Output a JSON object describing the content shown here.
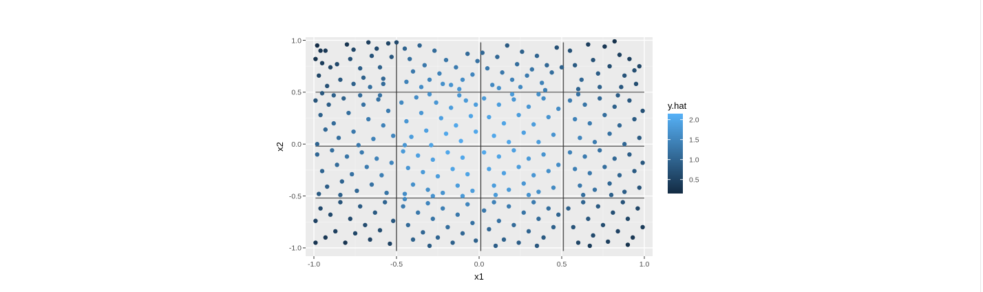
{
  "chart_data": {
    "type": "scatter",
    "title": "",
    "xlabel": "x1",
    "ylabel": "x2",
    "xlim": [
      -1.05,
      1.05
    ],
    "ylim": [
      -1.08,
      1.03
    ],
    "xticks": [
      -1.0,
      -0.5,
      0.0,
      0.5,
      1.0
    ],
    "xtick_labels": [
      "-1.0",
      "-0.5",
      "0.0",
      "0.5",
      "1.0"
    ],
    "yticks": [
      -1.0,
      -0.5,
      0.0,
      0.5,
      1.0
    ],
    "ytick_labels": [
      "-1.0",
      "-0.5",
      "0.0",
      "0.5",
      "1.0"
    ],
    "grid": true,
    "background": "#ebebeb",
    "color_scale": {
      "name": "y.hat",
      "low_color": "#132b43",
      "high_color": "#56b1f7",
      "range": [
        0.15,
        2.15
      ],
      "breaks": [
        0.5,
        1.0,
        1.5,
        2.0
      ],
      "break_labels": [
        "0.5",
        "1.0",
        "1.5",
        "2.0"
      ],
      "legend_position": "right"
    },
    "vertical_lines": [
      {
        "x": -0.5,
        "y_from": -1.03,
        "y_to": 0.98
      },
      {
        "x": 0.01,
        "y_from": -1.03,
        "y_to": 0.98
      },
      {
        "x": 0.51,
        "y_from": -1.03,
        "y_to": 0.98
      }
    ],
    "horizontal_lines": [
      {
        "y": 0.5,
        "x_from": -0.99,
        "x_to": 1.0
      },
      {
        "y": -0.02,
        "x_from": -0.99,
        "x_to": 1.0
      },
      {
        "y": -0.52,
        "x_from": -0.99,
        "x_to": 1.0
      }
    ],
    "points": [
      [
        -0.98,
        0.95,
        0.2
      ],
      [
        -0.96,
        0.9,
        0.3
      ],
      [
        -0.93,
        0.9,
        0.35
      ],
      [
        -0.99,
        0.82,
        0.25
      ],
      [
        -0.95,
        0.78,
        0.4
      ],
      [
        -0.9,
        0.74,
        0.55
      ],
      [
        -0.86,
        0.77,
        0.6
      ],
      [
        -0.8,
        0.96,
        0.3
      ],
      [
        -0.78,
        0.82,
        0.7
      ],
      [
        -0.76,
        0.91,
        0.55
      ],
      [
        -0.72,
        0.73,
        0.9
      ],
      [
        -0.7,
        0.64,
        0.95
      ],
      [
        -0.67,
        0.98,
        0.45
      ],
      [
        -0.65,
        0.85,
        0.75
      ],
      [
        -0.62,
        0.92,
        0.6
      ],
      [
        -0.6,
        0.74,
        0.95
      ],
      [
        -0.58,
        0.63,
        1.05
      ],
      [
        -0.55,
        0.97,
        0.55
      ],
      [
        -0.53,
        0.84,
        0.8
      ],
      [
        -0.5,
        0.98,
        0.6
      ],
      [
        -0.97,
        0.66,
        0.55
      ],
      [
        -0.92,
        0.56,
        0.7
      ],
      [
        -0.84,
        0.62,
        0.8
      ],
      [
        -0.76,
        0.58,
        0.95
      ],
      [
        -0.66,
        0.55,
        1.15
      ],
      [
        -0.58,
        0.58,
        1.1
      ],
      [
        -0.45,
        0.92,
        1.0
      ],
      [
        -0.42,
        0.82,
        1.15
      ],
      [
        -0.4,
        0.7,
        1.3
      ],
      [
        -0.36,
        0.95,
        1.0
      ],
      [
        -0.33,
        0.76,
        1.3
      ],
      [
        -0.3,
        0.62,
        1.5
      ],
      [
        -0.27,
        0.9,
        1.1
      ],
      [
        -0.24,
        0.68,
        1.45
      ],
      [
        -0.2,
        0.81,
        1.25
      ],
      [
        -0.17,
        0.57,
        1.7
      ],
      [
        -0.14,
        0.74,
        1.35
      ],
      [
        -0.1,
        0.62,
        1.6
      ],
      [
        -0.07,
        0.87,
        1.1
      ],
      [
        -0.04,
        0.67,
        1.5
      ],
      [
        -0.01,
        0.8,
        1.2
      ],
      [
        -0.44,
        0.6,
        1.45
      ],
      [
        -0.35,
        0.55,
        1.6
      ],
      [
        -0.22,
        0.58,
        1.65
      ],
      [
        -0.12,
        0.53,
        1.75
      ],
      [
        0.02,
        0.88,
        1.05
      ],
      [
        0.05,
        0.73,
        1.3
      ],
      [
        0.08,
        0.57,
        1.55
      ],
      [
        0.11,
        0.84,
        1.05
      ],
      [
        0.14,
        0.69,
        1.3
      ],
      [
        0.17,
        0.95,
        0.85
      ],
      [
        0.2,
        0.62,
        1.45
      ],
      [
        0.23,
        0.77,
        1.15
      ],
      [
        0.26,
        0.89,
        0.95
      ],
      [
        0.29,
        0.66,
        1.35
      ],
      [
        0.32,
        0.72,
        1.25
      ],
      [
        0.35,
        0.85,
        1.0
      ],
      [
        0.38,
        0.59,
        1.45
      ],
      [
        0.41,
        0.76,
        1.05
      ],
      [
        0.44,
        0.69,
        1.15
      ],
      [
        0.47,
        0.93,
        0.7
      ],
      [
        0.5,
        0.74,
        0.95
      ],
      [
        0.12,
        0.54,
        1.65
      ],
      [
        0.25,
        0.55,
        1.55
      ],
      [
        0.4,
        0.52,
        1.4
      ],
      [
        0.55,
        0.9,
        0.7
      ],
      [
        0.58,
        0.76,
        0.85
      ],
      [
        0.62,
        0.62,
        1.05
      ],
      [
        0.66,
        0.96,
        0.45
      ],
      [
        0.69,
        0.81,
        0.7
      ],
      [
        0.72,
        0.68,
        0.9
      ],
      [
        0.76,
        0.94,
        0.35
      ],
      [
        0.79,
        0.75,
        0.65
      ],
      [
        0.82,
        0.99,
        0.25
      ],
      [
        0.85,
        0.86,
        0.45
      ],
      [
        0.88,
        0.66,
        0.75
      ],
      [
        0.91,
        0.82,
        0.45
      ],
      [
        0.94,
        0.71,
        0.65
      ],
      [
        0.97,
        0.75,
        0.55
      ],
      [
        0.6,
        0.53,
        1.0
      ],
      [
        0.73,
        0.55,
        0.95
      ],
      [
        0.86,
        0.55,
        0.8
      ],
      [
        0.95,
        0.58,
        0.65
      ],
      [
        -0.99,
        0.42,
        0.75
      ],
      [
        -0.96,
        0.28,
        0.95
      ],
      [
        -0.93,
        0.14,
        1.05
      ],
      [
        -0.98,
        0.0,
        1.0
      ],
      [
        -0.91,
        0.38,
        0.9
      ],
      [
        -0.88,
        0.2,
        1.1
      ],
      [
        -0.85,
        0.06,
        1.15
      ],
      [
        -0.82,
        0.44,
        0.95
      ],
      [
        -0.79,
        0.3,
        1.15
      ],
      [
        -0.76,
        0.12,
        1.3
      ],
      [
        -0.73,
        -0.01,
        1.3
      ],
      [
        -0.7,
        0.38,
        1.2
      ],
      [
        -0.67,
        0.24,
        1.35
      ],
      [
        -0.64,
        0.05,
        1.45
      ],
      [
        -0.61,
        0.43,
        1.2
      ],
      [
        -0.58,
        0.18,
        1.45
      ],
      [
        -0.55,
        0.32,
        1.35
      ],
      [
        -0.52,
        0.08,
        1.5
      ],
      [
        -0.95,
        0.49,
        0.8
      ],
      [
        -0.88,
        0.47,
        0.95
      ],
      [
        -0.72,
        0.47,
        1.1
      ],
      [
        -0.6,
        0.47,
        1.2
      ],
      [
        -0.47,
        0.4,
        1.55
      ],
      [
        -0.44,
        0.22,
        1.75
      ],
      [
        -0.41,
        0.07,
        1.85
      ],
      [
        -0.38,
        0.45,
        1.6
      ],
      [
        -0.35,
        0.3,
        1.75
      ],
      [
        -0.32,
        0.13,
        1.9
      ],
      [
        -0.29,
        -0.01,
        1.95
      ],
      [
        -0.26,
        0.4,
        1.75
      ],
      [
        -0.23,
        0.25,
        1.9
      ],
      [
        -0.2,
        0.1,
        2.0
      ],
      [
        -0.17,
        0.35,
        1.85
      ],
      [
        -0.14,
        0.18,
        2.0
      ],
      [
        -0.11,
        0.03,
        2.05
      ],
      [
        -0.08,
        0.42,
        1.8
      ],
      [
        -0.05,
        0.27,
        1.95
      ],
      [
        -0.02,
        0.12,
        2.0
      ],
      [
        -0.45,
        -0.01,
        1.75
      ],
      [
        -0.3,
        0.48,
        1.7
      ],
      [
        -0.12,
        0.47,
        1.75
      ],
      [
        -0.02,
        0.38,
        1.85
      ],
      [
        0.03,
        0.44,
        1.8
      ],
      [
        0.06,
        0.26,
        1.95
      ],
      [
        0.09,
        0.08,
        2.0
      ],
      [
        0.12,
        0.38,
        1.85
      ],
      [
        0.15,
        0.2,
        1.95
      ],
      [
        0.18,
        0.02,
        2.0
      ],
      [
        0.21,
        0.43,
        1.75
      ],
      [
        0.24,
        0.28,
        1.85
      ],
      [
        0.27,
        0.11,
        1.9
      ],
      [
        0.3,
        0.36,
        1.75
      ],
      [
        0.33,
        0.19,
        1.85
      ],
      [
        0.36,
        0.02,
        1.85
      ],
      [
        0.39,
        0.44,
        1.6
      ],
      [
        0.42,
        0.26,
        1.7
      ],
      [
        0.45,
        0.09,
        1.7
      ],
      [
        0.48,
        0.34,
        1.6
      ],
      [
        0.2,
        0.48,
        1.8
      ],
      [
        0.36,
        0.48,
        1.65
      ],
      [
        0.55,
        0.42,
        1.35
      ],
      [
        0.58,
        0.24,
        1.45
      ],
      [
        0.61,
        0.06,
        1.5
      ],
      [
        0.64,
        0.38,
        1.25
      ],
      [
        0.67,
        0.2,
        1.35
      ],
      [
        0.7,
        0.02,
        1.35
      ],
      [
        0.73,
        0.44,
        1.05
      ],
      [
        0.76,
        0.28,
        1.15
      ],
      [
        0.79,
        0.1,
        1.2
      ],
      [
        0.82,
        0.36,
        0.95
      ],
      [
        0.85,
        0.18,
        1.05
      ],
      [
        0.88,
        0.0,
        1.05
      ],
      [
        0.91,
        0.42,
        0.8
      ],
      [
        0.94,
        0.24,
        0.85
      ],
      [
        0.97,
        0.06,
        0.85
      ],
      [
        0.99,
        0.32,
        0.7
      ],
      [
        0.6,
        0.48,
        1.2
      ],
      [
        0.84,
        0.47,
        0.9
      ],
      [
        -0.98,
        -0.1,
        1.05
      ],
      [
        -0.95,
        -0.26,
        1.0
      ],
      [
        -0.92,
        -0.41,
        0.9
      ],
      [
        -0.89,
        -0.06,
        1.15
      ],
      [
        -0.86,
        -0.2,
        1.1
      ],
      [
        -0.83,
        -0.36,
        1.0
      ],
      [
        -0.8,
        -0.12,
        1.25
      ],
      [
        -0.77,
        -0.29,
        1.2
      ],
      [
        -0.74,
        -0.45,
        1.05
      ],
      [
        -0.71,
        -0.08,
        1.35
      ],
      [
        -0.68,
        -0.22,
        1.35
      ],
      [
        -0.65,
        -0.39,
        1.2
      ],
      [
        -0.62,
        -0.14,
        1.45
      ],
      [
        -0.59,
        -0.3,
        1.4
      ],
      [
        -0.56,
        -0.47,
        1.25
      ],
      [
        -0.53,
        -0.18,
        1.5
      ],
      [
        -0.97,
        -0.48,
        0.85
      ],
      [
        -0.84,
        -0.49,
        0.95
      ],
      [
        -0.46,
        -0.07,
        1.8
      ],
      [
        -0.43,
        -0.23,
        1.75
      ],
      [
        -0.4,
        -0.39,
        1.65
      ],
      [
        -0.37,
        -0.11,
        1.9
      ],
      [
        -0.34,
        -0.27,
        1.8
      ],
      [
        -0.31,
        -0.44,
        1.65
      ],
      [
        -0.28,
        -0.15,
        1.9
      ],
      [
        -0.25,
        -0.31,
        1.85
      ],
      [
        -0.22,
        -0.47,
        1.7
      ],
      [
        -0.19,
        -0.08,
        2.0
      ],
      [
        -0.16,
        -0.24,
        1.95
      ],
      [
        -0.13,
        -0.4,
        1.85
      ],
      [
        -0.1,
        -0.13,
        2.0
      ],
      [
        -0.07,
        -0.29,
        1.95
      ],
      [
        -0.04,
        -0.45,
        1.85
      ],
      [
        -0.45,
        -0.48,
        1.6
      ],
      [
        -0.28,
        -0.5,
        1.7
      ],
      [
        -0.1,
        -0.5,
        1.8
      ],
      [
        0.03,
        -0.08,
        2.0
      ],
      [
        0.06,
        -0.24,
        1.95
      ],
      [
        0.09,
        -0.4,
        1.85
      ],
      [
        0.12,
        -0.12,
        1.95
      ],
      [
        0.15,
        -0.28,
        1.9
      ],
      [
        0.18,
        -0.44,
        1.8
      ],
      [
        0.21,
        -0.06,
        1.9
      ],
      [
        0.24,
        -0.22,
        1.85
      ],
      [
        0.27,
        -0.38,
        1.75
      ],
      [
        0.3,
        -0.14,
        1.8
      ],
      [
        0.33,
        -0.3,
        1.75
      ],
      [
        0.36,
        -0.46,
        1.65
      ],
      [
        0.39,
        -0.1,
        1.7
      ],
      [
        0.42,
        -0.26,
        1.65
      ],
      [
        0.45,
        -0.42,
        1.55
      ],
      [
        0.48,
        -0.2,
        1.6
      ],
      [
        0.1,
        -0.49,
        1.8
      ],
      [
        0.3,
        -0.49,
        1.7
      ],
      [
        0.55,
        -0.08,
        1.45
      ],
      [
        0.58,
        -0.24,
        1.4
      ],
      [
        0.61,
        -0.4,
        1.3
      ],
      [
        0.64,
        -0.12,
        1.35
      ],
      [
        0.67,
        -0.28,
        1.3
      ],
      [
        0.7,
        -0.44,
        1.2
      ],
      [
        0.73,
        -0.06,
        1.2
      ],
      [
        0.76,
        -0.22,
        1.15
      ],
      [
        0.79,
        -0.38,
        1.05
      ],
      [
        0.82,
        -0.14,
        1.05
      ],
      [
        0.85,
        -0.3,
        1.0
      ],
      [
        0.88,
        -0.46,
        0.9
      ],
      [
        0.91,
        -0.1,
        0.9
      ],
      [
        0.94,
        -0.26,
        0.85
      ],
      [
        0.97,
        -0.42,
        0.75
      ],
      [
        0.99,
        -0.18,
        0.8
      ],
      [
        0.63,
        -0.49,
        1.15
      ],
      [
        0.8,
        -0.49,
        0.95
      ],
      [
        -0.99,
        -0.74,
        0.5
      ],
      [
        -0.96,
        -0.62,
        0.6
      ],
      [
        -0.93,
        -0.9,
        0.35
      ],
      [
        -0.9,
        -0.68,
        0.6
      ],
      [
        -0.87,
        -0.84,
        0.45
      ],
      [
        -0.84,
        -0.56,
        0.75
      ],
      [
        -0.81,
        -0.95,
        0.3
      ],
      [
        -0.78,
        -0.72,
        0.6
      ],
      [
        -0.75,
        -0.86,
        0.55
      ],
      [
        -0.72,
        -0.6,
        0.85
      ],
      [
        -0.69,
        -0.78,
        0.65
      ],
      [
        -0.66,
        -0.92,
        0.5
      ],
      [
        -0.63,
        -0.66,
        0.85
      ],
      [
        -0.6,
        -0.83,
        0.65
      ],
      [
        -0.57,
        -0.56,
        1.0
      ],
      [
        -0.54,
        -0.96,
        0.5
      ],
      [
        -0.52,
        -0.74,
        0.8
      ],
      [
        -0.99,
        -0.95,
        0.3
      ],
      [
        -0.46,
        -0.6,
        1.35
      ],
      [
        -0.43,
        -0.78,
        1.1
      ],
      [
        -0.4,
        -0.92,
        0.95
      ],
      [
        -0.37,
        -0.66,
        1.3
      ],
      [
        -0.34,
        -0.85,
        1.05
      ],
      [
        -0.31,
        -0.57,
        1.5
      ],
      [
        -0.28,
        -0.72,
        1.25
      ],
      [
        -0.25,
        -0.9,
        1.0
      ],
      [
        -0.22,
        -0.62,
        1.4
      ],
      [
        -0.19,
        -0.8,
        1.15
      ],
      [
        -0.16,
        -0.95,
        0.95
      ],
      [
        -0.13,
        -0.68,
        1.3
      ],
      [
        -0.1,
        -0.86,
        1.05
      ],
      [
        -0.07,
        -0.58,
        1.5
      ],
      [
        -0.04,
        -0.76,
        1.2
      ],
      [
        -0.02,
        -0.93,
        0.95
      ],
      [
        -0.45,
        -0.53,
        1.55
      ],
      [
        -0.3,
        -0.98,
        0.85
      ],
      [
        0.03,
        -0.64,
        1.3
      ],
      [
        0.06,
        -0.82,
        1.05
      ],
      [
        0.09,
        -0.56,
        1.45
      ],
      [
        0.12,
        -0.74,
        1.2
      ],
      [
        0.15,
        -0.92,
        0.95
      ],
      [
        0.18,
        -0.6,
        1.35
      ],
      [
        0.21,
        -0.78,
        1.1
      ],
      [
        0.24,
        -0.95,
        0.9
      ],
      [
        0.27,
        -0.66,
        1.25
      ],
      [
        0.3,
        -0.84,
        1.0
      ],
      [
        0.33,
        -0.56,
        1.35
      ],
      [
        0.36,
        -0.72,
        1.1
      ],
      [
        0.39,
        -0.9,
        0.85
      ],
      [
        0.42,
        -0.62,
        1.15
      ],
      [
        0.45,
        -0.8,
        0.95
      ],
      [
        0.48,
        -0.68,
        1.0
      ],
      [
        0.1,
        -0.98,
        0.9
      ],
      [
        0.35,
        -0.98,
        0.8
      ],
      [
        0.54,
        -0.62,
        0.95
      ],
      [
        0.57,
        -0.8,
        0.75
      ],
      [
        0.6,
        -0.95,
        0.55
      ],
      [
        0.63,
        -0.56,
        1.0
      ],
      [
        0.66,
        -0.72,
        0.8
      ],
      [
        0.69,
        -0.88,
        0.6
      ],
      [
        0.72,
        -0.6,
        0.85
      ],
      [
        0.75,
        -0.78,
        0.65
      ],
      [
        0.78,
        -0.94,
        0.45
      ],
      [
        0.81,
        -0.66,
        0.7
      ],
      [
        0.84,
        -0.84,
        0.5
      ],
      [
        0.87,
        -0.56,
        0.75
      ],
      [
        0.9,
        -0.72,
        0.55
      ],
      [
        0.93,
        -0.9,
        0.35
      ],
      [
        0.96,
        -0.62,
        0.55
      ],
      [
        0.99,
        -0.8,
        0.4
      ],
      [
        0.67,
        -0.98,
        0.4
      ],
      [
        0.9,
        -0.97,
        0.25
      ]
    ]
  }
}
